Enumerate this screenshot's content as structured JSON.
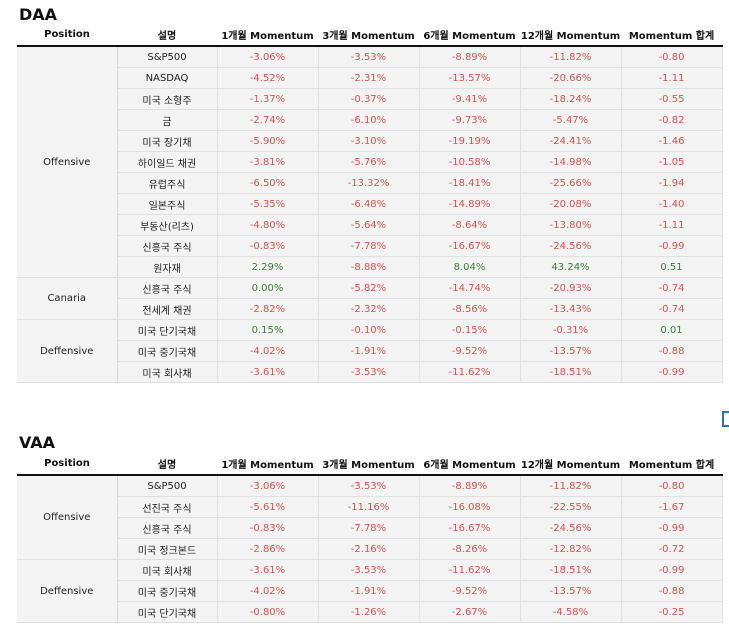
{
  "daa": {
    "title": "DAA",
    "headers": [
      "Position",
      "설명",
      "1개월 Momentum",
      "3개월 Momentum",
      "6개월 Momentum",
      "12개월 Momentum",
      "Momentum 합계"
    ],
    "groups": [
      {
        "position": "Offensive",
        "rows": [
          [
            "S&P500",
            "-3.06%",
            "-3.53%",
            "-8.89%",
            "-11.82%",
            "-0.80"
          ],
          [
            "NASDAQ",
            "-4.52%",
            "-2.31%",
            "-13.57%",
            "-20.66%",
            "-1.11"
          ],
          [
            "미국 소형주",
            "-1.37%",
            "-0.37%",
            "-9.41%",
            "-18.24%",
            "-0.55"
          ],
          [
            "금",
            "-2.74%",
            "-6.10%",
            "-9.73%",
            "-5.47%",
            "-0.82"
          ],
          [
            "미국 장기채",
            "-5.90%",
            "-3.10%",
            "-19.19%",
            "-24.41%",
            "-1.46"
          ],
          [
            "하이일드 채권",
            "-3.81%",
            "-5.76%",
            "-10.58%",
            "-14.98%",
            "-1.05"
          ],
          [
            "유럽주식",
            "-6.50%",
            "-13.32%",
            "-18.41%",
            "-25.66%",
            "-1.94"
          ],
          [
            "일본주식",
            "-5.35%",
            "-6.48%",
            "-14.89%",
            "-20.08%",
            "-1.40"
          ],
          [
            "부동산(리츠)",
            "-4.80%",
            "-5.64%",
            "-8.64%",
            "-13.80%",
            "-1.11"
          ],
          [
            "신흥국 주식",
            "-0.83%",
            "-7.78%",
            "-16.67%",
            "-24.56%",
            "-0.99"
          ],
          [
            "원자재",
            "2.29%",
            "-8.88%",
            "8.04%",
            "43.24%",
            "0.51"
          ]
        ]
      },
      {
        "position": "Canaria",
        "rows": [
          [
            "신흥국 주식",
            "0.00%",
            "-5.82%",
            "-14.74%",
            "-20.93%",
            "-0.74"
          ],
          [
            "전세계 채권",
            "-2.82%",
            "-2.32%",
            "-8.56%",
            "-13.43%",
            "-0.74"
          ]
        ]
      },
      {
        "position": "Deffensive",
        "rows": [
          [
            "미국 단기국채",
            "0.15%",
            "-0.10%",
            "-0.15%",
            "-0.31%",
            "0.01"
          ],
          [
            "미국 중기국채",
            "-4.02%",
            "-1.91%",
            "-9.52%",
            "-13.57%",
            "-0.88"
          ],
          [
            "미국 회사채",
            "-3.61%",
            "-3.53%",
            "-11.62%",
            "-18.51%",
            "-0.99"
          ]
        ]
      }
    ]
  },
  "vaa": {
    "title": "VAA",
    "headers": [
      "Position",
      "설명",
      "1개월 Momentum",
      "3개월 Momentum",
      "6개월 Momentum",
      "12개월 Momentum",
      "Momentum 합계"
    ],
    "groups": [
      {
        "position": "Offensive",
        "rows": [
          [
            "S&P500",
            "-3.06%",
            "-3.53%",
            "-8.89%",
            "-11.82%",
            "-0.80"
          ],
          [
            "선진국 주식",
            "-5.61%",
            "-11.16%",
            "-16.08%",
            "-22.55%",
            "-1.67"
          ],
          [
            "신흥국 주식",
            "-0.83%",
            "-7.78%",
            "-16.67%",
            "-24.56%",
            "-0.99"
          ],
          [
            "미국 정크본드",
            "-2.86%",
            "-2.16%",
            "-8.26%",
            "-12.82%",
            "-0.72"
          ]
        ]
      },
      {
        "position": "Deffensive",
        "rows": [
          [
            "미국 회사채",
            "-3.61%",
            "-3.53%",
            "-11.62%",
            "-18.51%",
            "-0.99"
          ],
          [
            "미국 중기국채",
            "-4.02%",
            "-1.91%",
            "-9.52%",
            "-13.57%",
            "-0.88"
          ],
          [
            "미국 단기국채",
            "-0.80%",
            "-1.26%",
            "-2.67%",
            "-4.58%",
            "-0.25"
          ]
        ]
      }
    ]
  },
  "colors": {
    "negative": "#d8534e",
    "positive": "#3d7d3a",
    "cell_bg": "#f3f3f3"
  }
}
